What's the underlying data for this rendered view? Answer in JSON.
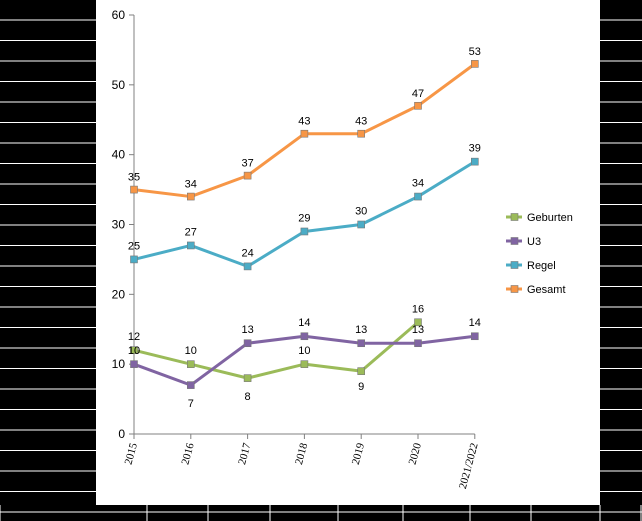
{
  "chart_data": {
    "type": "line",
    "title": "",
    "xlabel": "",
    "ylabel": "",
    "categories": [
      "2015",
      "2016",
      "2017",
      "2018",
      "2019",
      "2020",
      "2021/2022"
    ],
    "ylim": [
      0,
      60
    ],
    "yticks": [
      "0",
      "10",
      "20",
      "30",
      "40",
      "50",
      "60"
    ],
    "grid": false,
    "legend": "right",
    "series": [
      {
        "name": "Geburten",
        "color": "#9bbb59",
        "values": [
          12,
          10,
          8,
          10,
          9,
          16,
          null
        ],
        "labels": [
          "12",
          "10",
          "8",
          "10",
          "9",
          "16",
          ""
        ]
      },
      {
        "name": "U3",
        "color": "#8064a2",
        "values": [
          10,
          7,
          13,
          14,
          13,
          13,
          14
        ],
        "labels": [
          "10",
          "7",
          "13",
          "14",
          "13",
          "13",
          "14"
        ]
      },
      {
        "name": "Regel",
        "color": "#4bacc6",
        "values": [
          25,
          27,
          24,
          29,
          30,
          34,
          39
        ],
        "labels": [
          "25",
          "27",
          "24",
          "29",
          "30",
          "34",
          "39"
        ]
      },
      {
        "name": "Gesamt",
        "color": "#f79646",
        "values": [
          35,
          34,
          37,
          43,
          43,
          47,
          53
        ],
        "labels": [
          "35",
          "34",
          "37",
          "43",
          "43",
          "47",
          "53"
        ]
      }
    ]
  }
}
